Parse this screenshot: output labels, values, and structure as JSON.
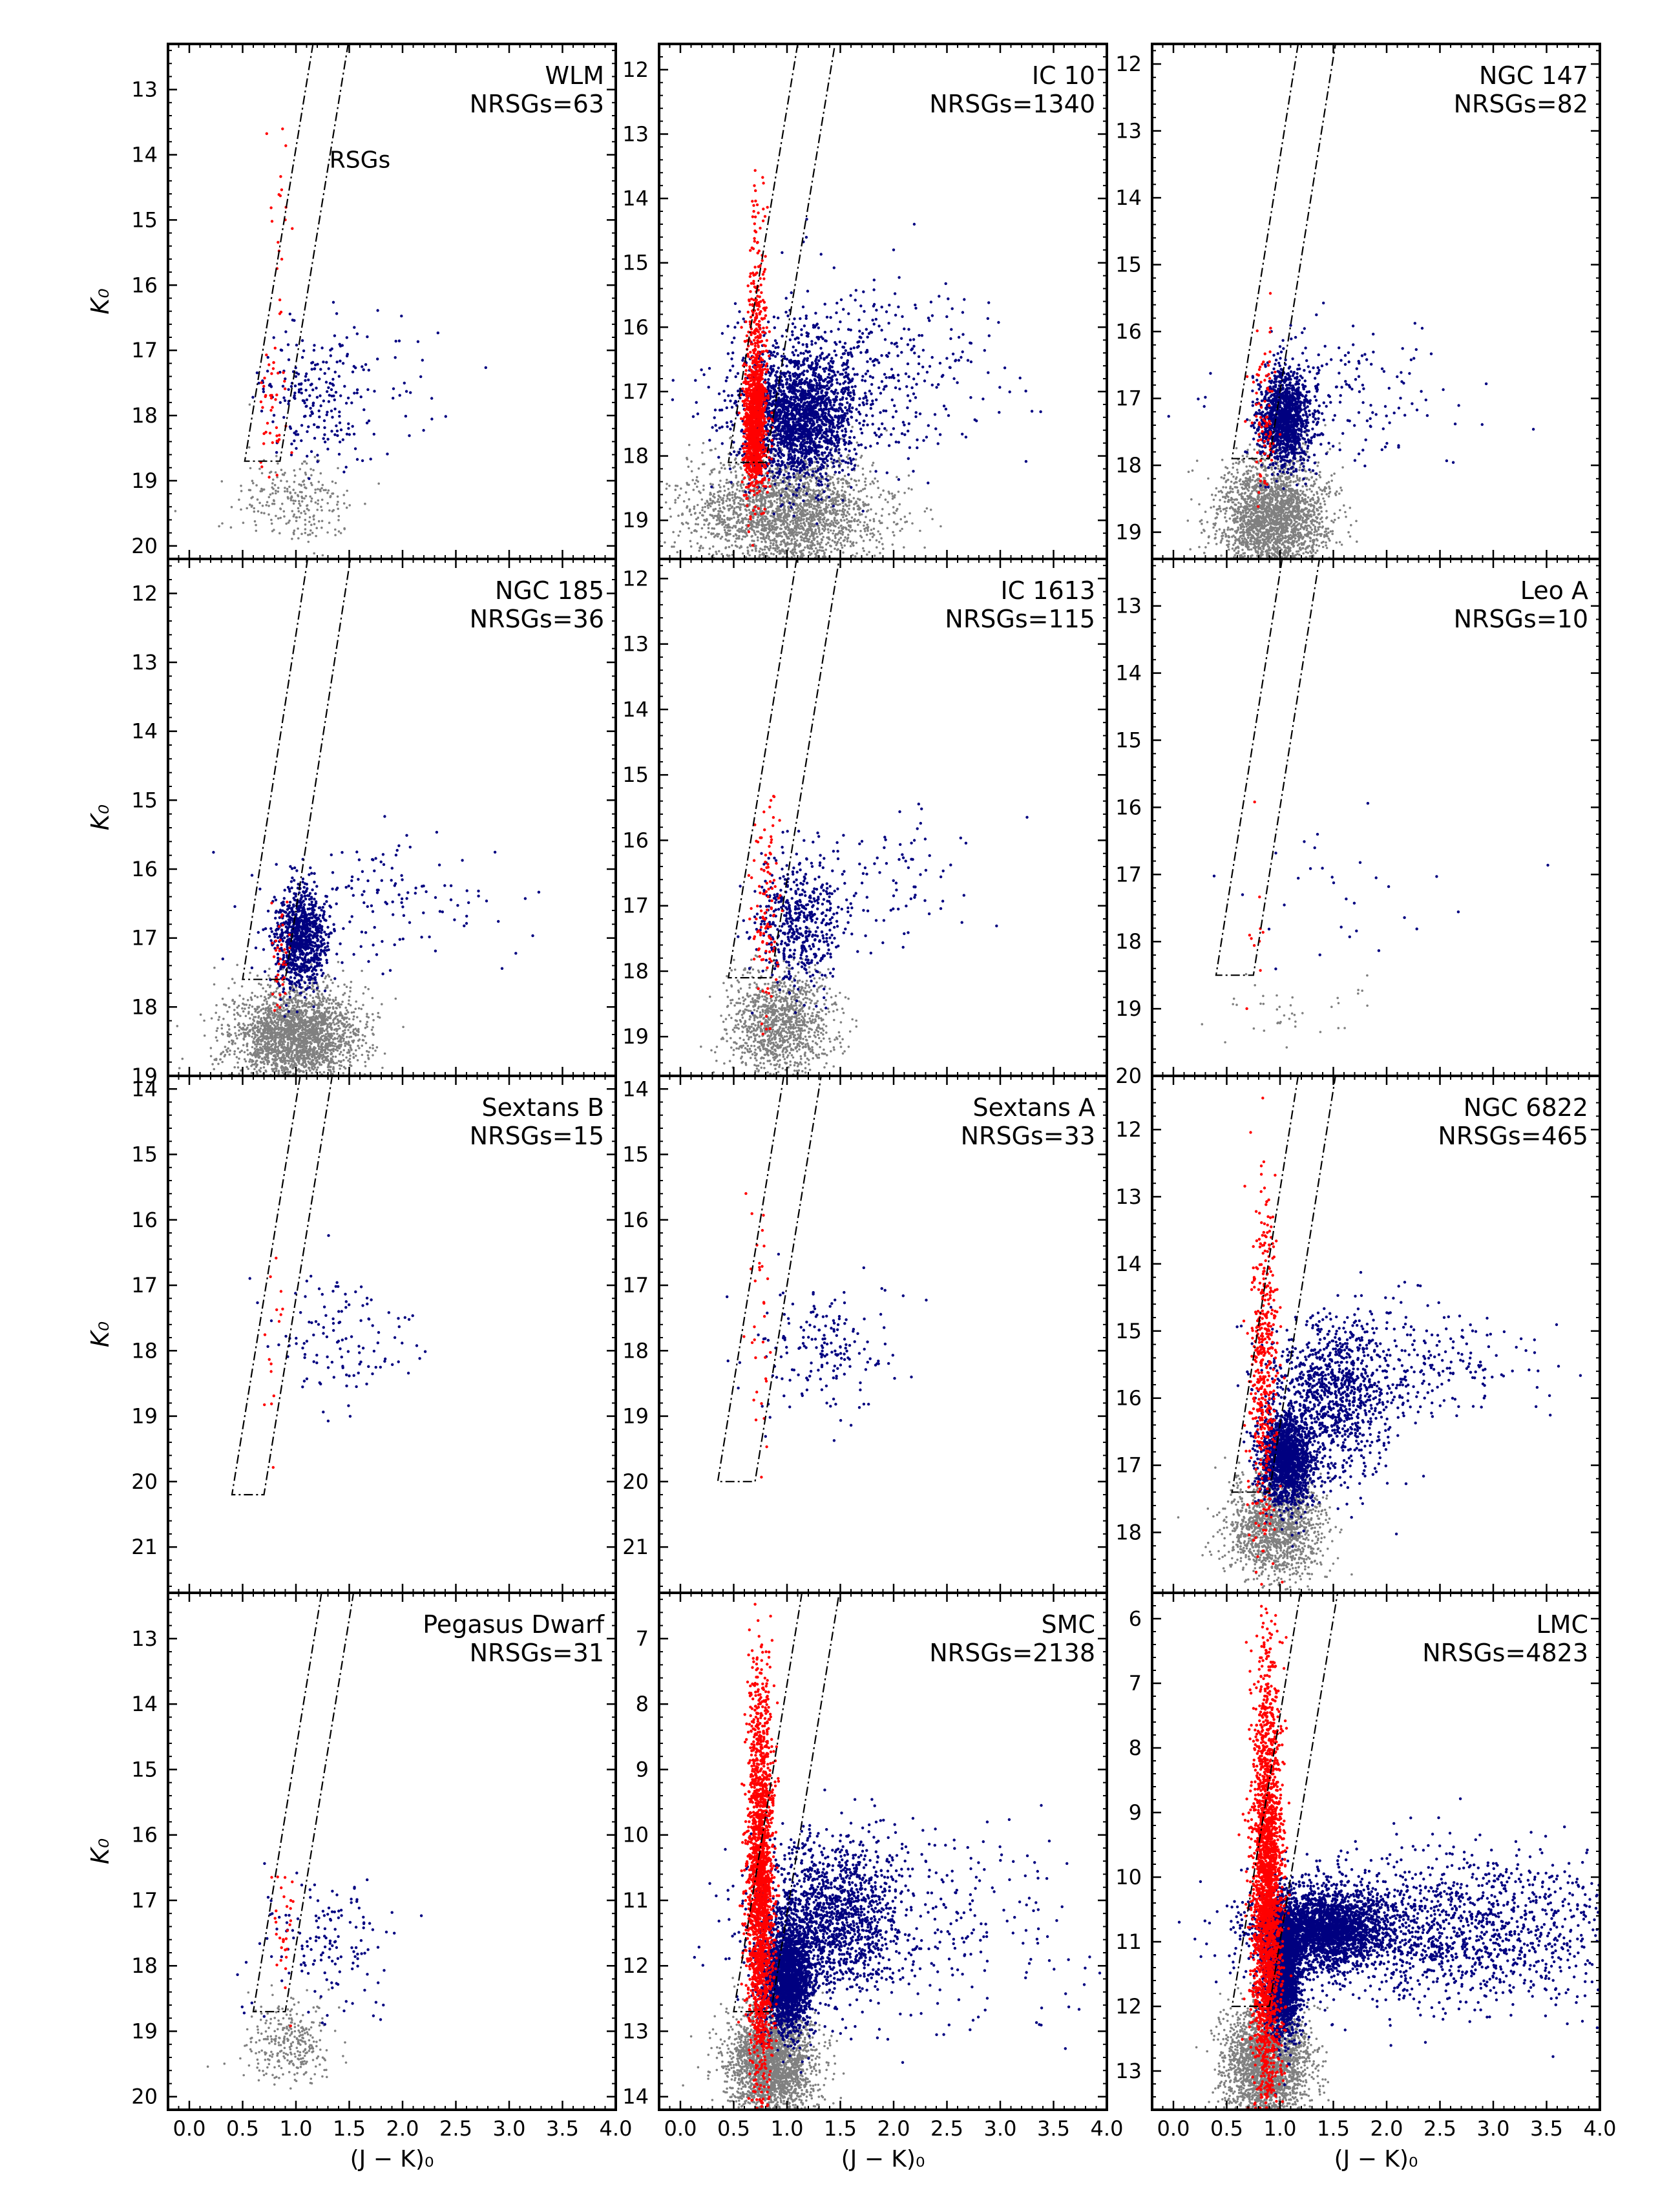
{
  "figure": {
    "xlabel": "(J − K)₀",
    "ylabel": "K₀"
  },
  "colors": {
    "rsg": "#ff0000",
    "agb": "#000080",
    "faint": "#808080",
    "boundary": "#000000"
  },
  "chart_data": [
    {
      "type": "scatter",
      "panel": "WLM",
      "label": "NRSGs=63",
      "n_rsgs": 63,
      "xlim": [
        -0.2,
        4.0
      ],
      "ylim": [
        20.2,
        12.3
      ],
      "yticks": [
        13,
        14,
        15,
        16,
        17,
        18,
        19,
        20
      ],
      "x_ticks_labeled": false,
      "rsg_box": {
        "k_cut": 18.7,
        "left_at_cut": 0.52,
        "right_at_cut": 0.85,
        "slope_dk_per_dx": -10
      },
      "annotation": "RSGs",
      "density": {
        "rsg": [
          [
            0.85,
            14.9,
            0.06,
            1.2,
            20
          ],
          [
            0.78,
            17.9,
            0.06,
            0.5,
            43
          ]
        ],
        "agb": [
          [
            1.15,
            17.7,
            0.22,
            0.5,
            200
          ],
          [
            1.9,
            17.4,
            0.5,
            0.6,
            50
          ]
        ],
        "faint": [
          [
            1.0,
            19.3,
            0.28,
            0.35,
            250
          ]
        ]
      }
    },
    {
      "type": "scatter",
      "panel": "IC 10",
      "label": "NRSGs=1340",
      "n_rsgs": 1340,
      "xlim": [
        -0.2,
        4.0
      ],
      "ylim": [
        19.6,
        11.6
      ],
      "yticks": [
        12,
        13,
        14,
        15,
        16,
        17,
        18,
        19
      ],
      "x_ticks_labeled": false,
      "rsg_box": {
        "k_cut": 18.1,
        "left_at_cut": 0.45,
        "right_at_cut": 0.8,
        "slope_dk_per_dx": -10
      },
      "density": {
        "rsg": [
          [
            0.72,
            16.2,
            0.05,
            1.1,
            300
          ],
          [
            0.7,
            17.5,
            0.05,
            0.5,
            1040
          ]
        ],
        "agb": [
          [
            1.1,
            17.4,
            0.25,
            0.5,
            2000
          ],
          [
            1.6,
            16.8,
            0.6,
            0.7,
            500
          ]
        ],
        "faint": [
          [
            1.0,
            18.9,
            0.45,
            0.45,
            2500
          ]
        ]
      }
    },
    {
      "type": "scatter",
      "panel": "NGC 147",
      "label": "NRSGs=82",
      "n_rsgs": 82,
      "xlim": [
        -0.2,
        4.0
      ],
      "ylim": [
        19.4,
        11.7
      ],
      "yticks": [
        12,
        13,
        14,
        15,
        16,
        17,
        18,
        19
      ],
      "x_ticks_labeled": false,
      "rsg_box": {
        "k_cut": 17.9,
        "left_at_cut": 0.55,
        "right_at_cut": 0.9,
        "slope_dk_per_dx": -10
      },
      "density": {
        "rsg": [
          [
            0.85,
            17.3,
            0.05,
            0.6,
            82
          ]
        ],
        "agb": [
          [
            1.05,
            17.3,
            0.12,
            0.35,
            1300
          ],
          [
            1.7,
            16.9,
            0.6,
            0.5,
            150
          ]
        ],
        "faint": [
          [
            0.95,
            18.8,
            0.25,
            0.45,
            2500
          ]
        ]
      }
    },
    {
      "type": "scatter",
      "panel": "NGC 185",
      "label": "NRSGs=36",
      "n_rsgs": 36,
      "xlim": [
        -0.2,
        4.0
      ],
      "ylim": [
        19.0,
        11.5
      ],
      "yticks": [
        12,
        13,
        14,
        15,
        16,
        17,
        18,
        19
      ],
      "x_ticks_labeled": false,
      "rsg_box": {
        "k_cut": 17.6,
        "left_at_cut": 0.5,
        "right_at_cut": 0.9,
        "slope_dk_per_dx": -10
      },
      "density": {
        "rsg": [
          [
            0.85,
            17.3,
            0.05,
            0.4,
            36
          ]
        ],
        "agb": [
          [
            1.05,
            17.0,
            0.12,
            0.35,
            900
          ],
          [
            1.7,
            16.5,
            0.55,
            0.5,
            150
          ]
        ],
        "faint": [
          [
            1.0,
            18.4,
            0.3,
            0.35,
            2500
          ]
        ]
      }
    },
    {
      "type": "scatter",
      "panel": "IC 1613",
      "label": "NRSGs=115",
      "n_rsgs": 115,
      "xlim": [
        -0.2,
        4.0
      ],
      "ylim": [
        19.6,
        11.7
      ],
      "yticks": [
        12,
        13,
        14,
        15,
        16,
        17,
        18,
        19
      ],
      "x_ticks_labeled": false,
      "rsg_box": {
        "k_cut": 18.1,
        "left_at_cut": 0.45,
        "right_at_cut": 0.85,
        "slope_dk_per_dx": -10
      },
      "density": {
        "rsg": [
          [
            0.8,
            17.0,
            0.06,
            0.9,
            115
          ]
        ],
        "agb": [
          [
            1.1,
            17.3,
            0.2,
            0.5,
            500
          ],
          [
            1.8,
            16.6,
            0.5,
            0.5,
            100
          ]
        ],
        "faint": [
          [
            0.95,
            18.8,
            0.25,
            0.4,
            1200
          ]
        ]
      }
    },
    {
      "type": "scatter",
      "panel": "Leo A",
      "label": "NRSGs=10",
      "n_rsgs": 10,
      "xlim": [
        -0.2,
        4.0
      ],
      "ylim": [
        20.0,
        12.3
      ],
      "yticks": [
        13,
        14,
        15,
        16,
        17,
        18,
        19,
        20
      ],
      "x_ticks_labeled": false,
      "rsg_box": {
        "k_cut": 18.5,
        "left_at_cut": 0.4,
        "right_at_cut": 0.75,
        "slope_dk_per_dx": -10
      },
      "density": {
        "rsg": [
          [
            0.8,
            17.6,
            0.05,
            0.8,
            10
          ]
        ],
        "agb": [
          [
            1.4,
            17.3,
            0.5,
            0.7,
            30
          ]
        ],
        "faint": [
          [
            1.0,
            19.0,
            0.4,
            0.3,
            40
          ]
        ]
      }
    },
    {
      "type": "scatter",
      "panel": "Sextans B",
      "label": "NRSGs=15",
      "n_rsgs": 15,
      "xlim": [
        -0.2,
        4.0
      ],
      "ylim": [
        21.7,
        13.8
      ],
      "yticks": [
        14,
        15,
        16,
        17,
        18,
        19,
        20,
        21
      ],
      "x_ticks_labeled": false,
      "rsg_box": {
        "k_cut": 20.2,
        "left_at_cut": 0.4,
        "right_at_cut": 0.7,
        "slope_dk_per_dx": -10
      },
      "density": {
        "rsg": [
          [
            0.8,
            17.8,
            0.05,
            1.0,
            15
          ]
        ],
        "agb": [
          [
            1.4,
            17.8,
            0.35,
            0.5,
            120
          ]
        ],
        "faint": []
      }
    },
    {
      "type": "scatter",
      "panel": "Sextans A",
      "label": "NRSGs=33",
      "n_rsgs": 33,
      "xlim": [
        -0.2,
        4.0
      ],
      "ylim": [
        21.7,
        13.8
      ],
      "yticks": [
        14,
        15,
        16,
        17,
        18,
        19,
        20,
        21
      ],
      "x_ticks_labeled": false,
      "rsg_box": {
        "k_cut": 20.0,
        "left_at_cut": 0.35,
        "right_at_cut": 0.7,
        "slope_dk_per_dx": -10
      },
      "density": {
        "rsg": [
          [
            0.75,
            17.8,
            0.05,
            1.0,
            33
          ]
        ],
        "agb": [
          [
            1.35,
            18.0,
            0.35,
            0.5,
            180
          ]
        ],
        "faint": []
      }
    },
    {
      "type": "scatter",
      "panel": "NGC 6822",
      "label": "NRSGs=465",
      "n_rsgs": 465,
      "xlim": [
        -0.2,
        4.0
      ],
      "ylim": [
        18.9,
        11.2
      ],
      "yticks": [
        12,
        13,
        14,
        15,
        16,
        17,
        18
      ],
      "x_ticks_labeled": false,
      "rsg_box": {
        "k_cut": 17.4,
        "left_at_cut": 0.55,
        "right_at_cut": 0.9,
        "slope_dk_per_dx": -10
      },
      "density": {
        "rsg": [
          [
            0.85,
            15.5,
            0.06,
            1.3,
            465
          ]
        ],
        "agb": [
          [
            1.05,
            16.9,
            0.12,
            0.35,
            1500
          ],
          [
            1.5,
            16.0,
            0.3,
            0.6,
            1000
          ],
          [
            2.2,
            15.5,
            0.6,
            0.4,
            250
          ]
        ],
        "faint": [
          [
            0.95,
            17.9,
            0.22,
            0.4,
            1500
          ]
        ]
      }
    },
    {
      "type": "scatter",
      "panel": "Pegasus Dwarf",
      "label": "NRSGs=31",
      "n_rsgs": 31,
      "xlim": [
        -0.2,
        4.0
      ],
      "ylim": [
        20.2,
        12.3
      ],
      "yticks": [
        13,
        14,
        15,
        16,
        17,
        18,
        19,
        20
      ],
      "x_ticks_labeled": true,
      "xticks": [
        0.0,
        0.5,
        1.0,
        1.5,
        2.0,
        2.5,
        3.0,
        3.5,
        4.0
      ],
      "xlabel": "(J − K)₀",
      "rsg_box": {
        "k_cut": 18.7,
        "left_at_cut": 0.6,
        "right_at_cut": 0.9,
        "slope_dk_per_dx": -10
      },
      "density": {
        "rsg": [
          [
            0.88,
            17.6,
            0.05,
            0.8,
            31
          ]
        ],
        "agb": [
          [
            1.3,
            17.7,
            0.3,
            0.5,
            150
          ]
        ],
        "faint": [
          [
            0.95,
            19.2,
            0.2,
            0.3,
            300
          ]
        ]
      }
    },
    {
      "type": "scatter",
      "panel": "SMC",
      "label": "NRSGs=2138",
      "n_rsgs": 2138,
      "xlim": [
        -0.2,
        4.0
      ],
      "ylim": [
        14.2,
        6.3
      ],
      "yticks": [
        7,
        8,
        9,
        10,
        11,
        12,
        13,
        14
      ],
      "x_ticks_labeled": true,
      "xticks": [
        0.0,
        0.5,
        1.0,
        1.5,
        2.0,
        2.5,
        3.0,
        3.5,
        4.0
      ],
      "xlabel": "(J − K)₀",
      "rsg_box": {
        "k_cut": 12.7,
        "left_at_cut": 0.5,
        "right_at_cut": 0.85,
        "slope_dk_per_dx": -10
      },
      "density": {
        "rsg": [
          [
            0.75,
            10.8,
            0.06,
            1.5,
            2138
          ]
        ],
        "agb": [
          [
            1.0,
            12.2,
            0.12,
            0.4,
            2000
          ],
          [
            1.4,
            11.3,
            0.35,
            0.6,
            1500
          ],
          [
            2.3,
            11.3,
            0.8,
            0.8,
            300
          ]
        ],
        "faint": [
          [
            0.85,
            13.5,
            0.2,
            0.45,
            4000
          ]
        ]
      }
    },
    {
      "type": "scatter",
      "panel": "LMC",
      "label": "NRSGs=4823",
      "n_rsgs": 4823,
      "xlim": [
        -0.2,
        4.0
      ],
      "ylim": [
        13.6,
        5.6
      ],
      "yticks": [
        6,
        7,
        8,
        9,
        10,
        11,
        12,
        13
      ],
      "x_ticks_labeled": true,
      "xticks": [
        0.0,
        0.5,
        1.0,
        1.5,
        2.0,
        2.5,
        3.0,
        3.5,
        4.0
      ],
      "xlabel": "(J − K)₀",
      "rsg_box": {
        "k_cut": 12.0,
        "left_at_cut": 0.55,
        "right_at_cut": 0.9,
        "slope_dk_per_dx": -10
      },
      "density": {
        "rsg": [
          [
            0.88,
            10.2,
            0.07,
            1.6,
            4823
          ]
        ],
        "agb": [
          [
            1.02,
            11.4,
            0.08,
            0.5,
            3000
          ],
          [
            1.4,
            10.8,
            0.3,
            0.3,
            2500
          ],
          [
            2.6,
            10.8,
            0.8,
            0.6,
            1500
          ]
        ],
        "faint": [
          [
            0.88,
            12.9,
            0.2,
            0.45,
            5000
          ]
        ]
      }
    }
  ]
}
